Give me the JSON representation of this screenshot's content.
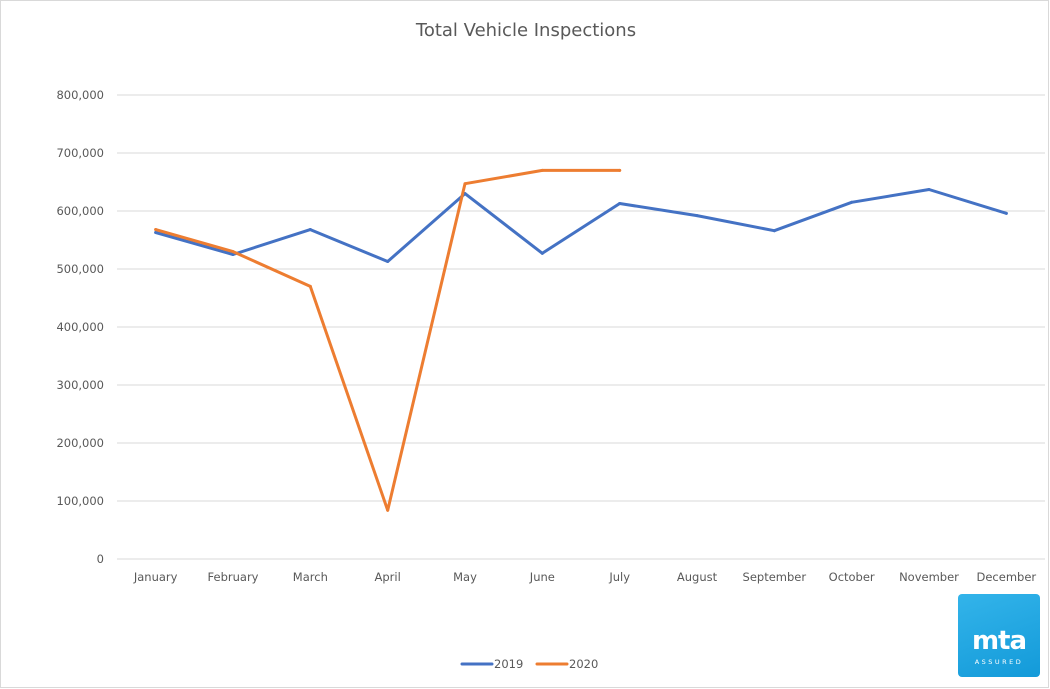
{
  "chart_data": {
    "type": "line",
    "title": "Total Vehicle Inspections",
    "categories": [
      "January",
      "February",
      "March",
      "April",
      "May",
      "June",
      "July",
      "August",
      "September",
      "October",
      "November",
      "December"
    ],
    "series": [
      {
        "name": "2019",
        "color": "#4472c4",
        "values": [
          563000,
          525000,
          568000,
          513000,
          630000,
          527000,
          613000,
          592000,
          566000,
          615000,
          637000,
          596000
        ]
      },
      {
        "name": "2020",
        "color": "#ed7d31",
        "values": [
          568000,
          530000,
          470000,
          84000,
          647000,
          670000,
          670000,
          null,
          null,
          null,
          null,
          null
        ]
      }
    ],
    "ylim": [
      0,
      800000
    ],
    "yticks": [
      0,
      100000,
      200000,
      300000,
      400000,
      500000,
      600000,
      700000,
      800000
    ],
    "ytick_labels": [
      "0",
      "100,000",
      "200,000",
      "300,000",
      "400,000",
      "500,000",
      "600,000",
      "700,000",
      "800,000"
    ],
    "xlabel": "",
    "ylabel": "",
    "grid": true,
    "legend_position": "bottom"
  },
  "logo": {
    "word": "mta",
    "sub": "ASSURED",
    "color": "#1ea7e1"
  }
}
